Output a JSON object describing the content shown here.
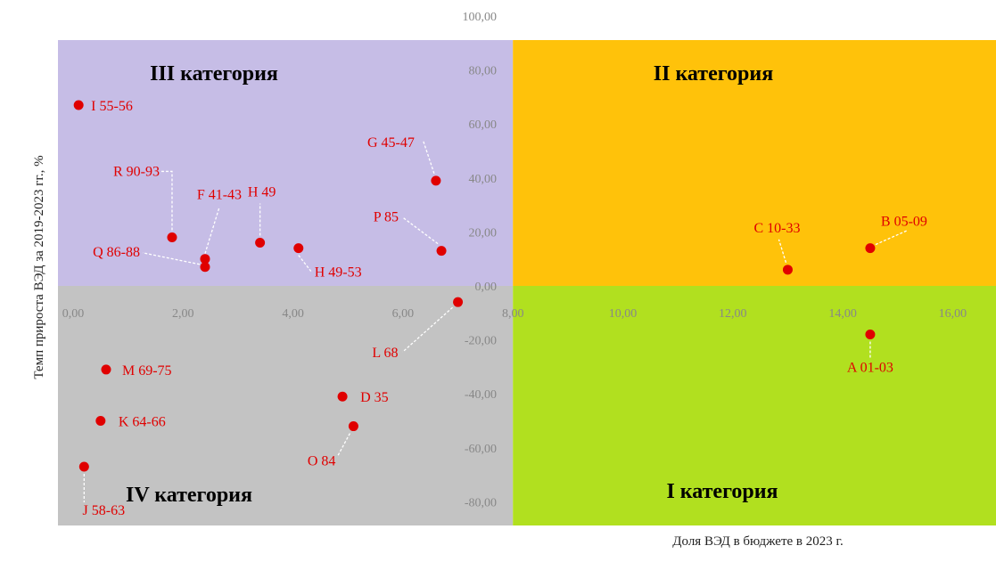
{
  "chart_data": {
    "type": "scatter",
    "ylabel": "Темп прироста ВЭД за  2019-2023   гг., %",
    "xlabel": "Доля ВЭД в бюджете в 2023   г.",
    "xlim": [
      0,
      17
    ],
    "ylim": [
      -80,
      100
    ],
    "x_ticks": [
      "0,00",
      "2,00",
      "4,00",
      "6,00",
      "8,00",
      "10,00",
      "12,00",
      "14,00",
      "16,00"
    ],
    "y_ticks": [
      "100,00",
      "80,00",
      "60,00",
      "40,00",
      "20,00",
      "0,00",
      "-20,00",
      "-40,00",
      "-60,00",
      "-80,00"
    ],
    "quadrant_boundary": {
      "x": 8.0,
      "y": 0.0
    },
    "quadrants": [
      {
        "label": "III категория",
        "color": "#c6bde6"
      },
      {
        "label": "II категория",
        "color": "#ffc20a"
      },
      {
        "label": "IV категория",
        "color": "#c3c3c3"
      },
      {
        "label": "I категория",
        "color": "#b1e01f"
      }
    ],
    "point_color": "#e00000",
    "points": [
      {
        "label": "I 55-56",
        "x": 0.1,
        "y": 67
      },
      {
        "label": "G 45-47",
        "x": 6.6,
        "y": 39
      },
      {
        "label": "R 90-93",
        "x": 1.8,
        "y": 18
      },
      {
        "label": "F 41-43",
        "x": 2.4,
        "y": 10
      },
      {
        "label": "Q 86-88",
        "x": 2.4,
        "y": 7
      },
      {
        "label": "H 49",
        "x": 3.4,
        "y": 16
      },
      {
        "label": "H 49-53",
        "x": 4.1,
        "y": 14
      },
      {
        "label": "P 85",
        "x": 6.7,
        "y": 13
      },
      {
        "label": "C 10-33",
        "x": 13.0,
        "y": 6
      },
      {
        "label": "B 05-09",
        "x": 14.5,
        "y": 14
      },
      {
        "label": "L 68",
        "x": 7.0,
        "y": -6
      },
      {
        "label": "A 01-03",
        "x": 14.5,
        "y": -18
      },
      {
        "label": "M 69-75",
        "x": 0.6,
        "y": -31
      },
      {
        "label": "K 64-66",
        "x": 0.5,
        "y": -50
      },
      {
        "label": "D 35",
        "x": 4.9,
        "y": -41
      },
      {
        "label": "O 84",
        "x": 5.1,
        "y": -52
      },
      {
        "label": "J 58-63",
        "x": 0.2,
        "y": -67
      }
    ]
  }
}
